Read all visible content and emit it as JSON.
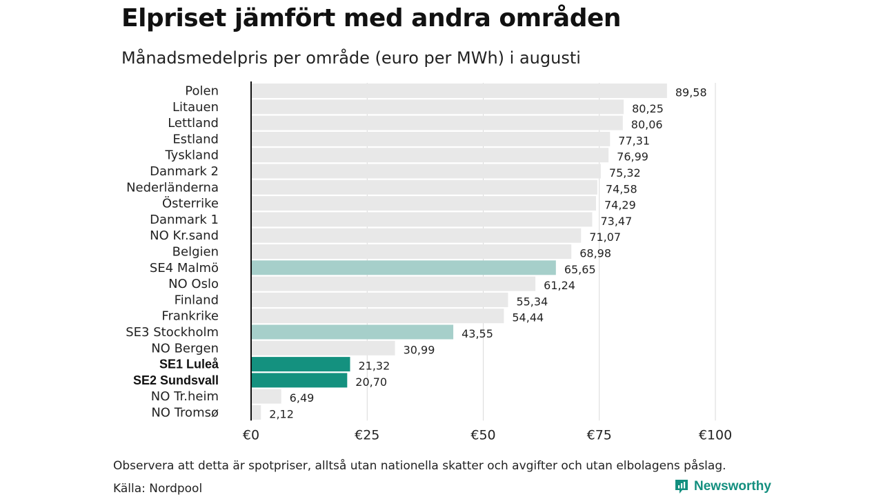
{
  "header": {
    "title": "Elpriset jämfört med andra områden",
    "subtitle": "Månadsmedelpris per område (euro per MWh) i augusti"
  },
  "footer": {
    "note": "Observera att detta är spotpriser, alltså utan nationella skatter och avgifter och utan elbolagens påslag.",
    "source": "Källa: Nordpool",
    "brand": "Newsworthy"
  },
  "colors": {
    "default_bar": "#e8e8e8",
    "se_bar": "#a6cfca",
    "highlight_bar": "#14917f",
    "gridline": "#d9d9d9",
    "axis": "#111111",
    "brand": "#138f7f"
  },
  "chart_data": {
    "type": "bar",
    "orientation": "horizontal",
    "title": "Elpriset jämfört med andra områden",
    "subtitle": "Månadsmedelpris per område (euro per MWh) i augusti",
    "categories": [
      "Polen",
      "Litauen",
      "Lettland",
      "Estland",
      "Tyskland",
      "Danmark 2",
      "Nederländerna",
      "Österrike",
      "Danmark 1",
      "NO Kr.sand",
      "Belgien",
      "SE4 Malmö",
      "NO Oslo",
      "Finland",
      "Frankrike",
      "SE3 Stockholm",
      "NO Bergen",
      "SE1 Luleå",
      "SE2 Sundsvall",
      "NO Tr.heim",
      "NO Tromsø"
    ],
    "values": [
      89.58,
      80.25,
      80.06,
      77.31,
      76.99,
      75.32,
      74.58,
      74.29,
      73.47,
      71.07,
      68.98,
      65.65,
      61.24,
      55.34,
      54.44,
      43.55,
      30.99,
      21.32,
      20.7,
      6.49,
      2.12
    ],
    "value_labels": [
      "89,58",
      "80,25",
      "80,06",
      "77,31",
      "76,99",
      "75,32",
      "74,58",
      "74,29",
      "73,47",
      "71,07",
      "68,98",
      "65,65",
      "61,24",
      "55,34",
      "54,44",
      "43,55",
      "30,99",
      "21,32",
      "20,70",
      "6,49",
      "2,12"
    ],
    "bar_style": [
      "default",
      "default",
      "default",
      "default",
      "default",
      "default",
      "default",
      "default",
      "default",
      "default",
      "default",
      "se",
      "default",
      "default",
      "default",
      "se",
      "default",
      "highlight",
      "highlight",
      "default",
      "default"
    ],
    "xlim": [
      0,
      100
    ],
    "xticks": [
      0,
      25,
      50,
      75,
      100
    ],
    "xtick_labels": [
      "€0",
      "€25",
      "€50",
      "€75",
      "€100"
    ],
    "grid": true,
    "legend": false
  }
}
